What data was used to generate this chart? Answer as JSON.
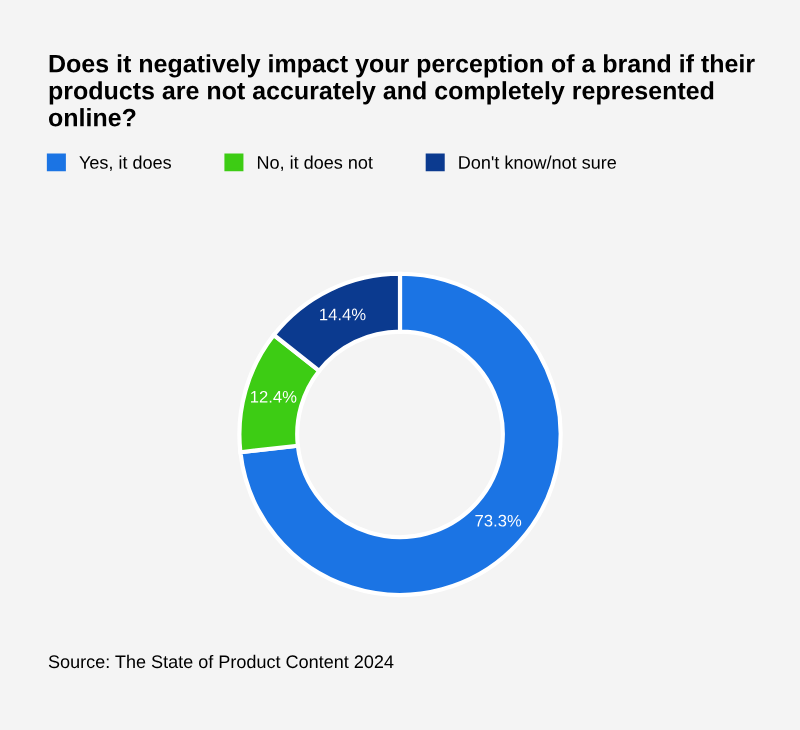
{
  "chart_data": {
    "type": "donut",
    "title": "Does it negatively impact your perception of a brand if their products are not accurately and completely represented online?",
    "categories": [
      "Yes, it does",
      "No, it does not",
      "Don't know/not sure"
    ],
    "values": [
      73.3,
      12.4,
      14.4
    ],
    "value_labels": [
      "73.3%",
      "12.4%",
      "14.4%"
    ],
    "colors": [
      "#1b74e4",
      "#3dcc14",
      "#0b3a8f"
    ],
    "legend": "top left",
    "annotations": [
      "Source: The State of Product Content 2024"
    ]
  }
}
